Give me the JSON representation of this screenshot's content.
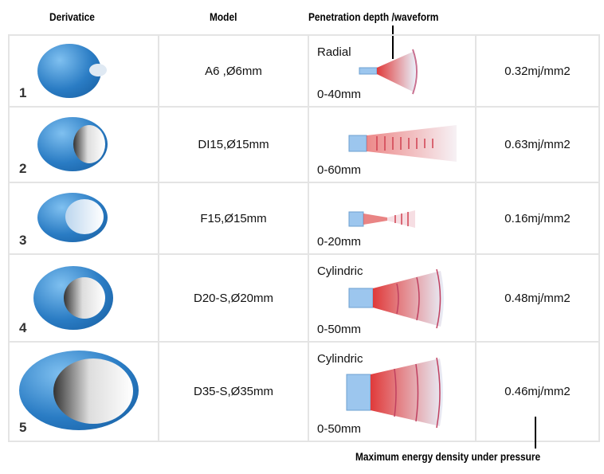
{
  "headers": {
    "derivative": "Derivatice",
    "model": "Model",
    "penetration": "Penetration depth /waveform"
  },
  "footer": "Maximum energy density under pressure",
  "rows": [
    {
      "num": "1",
      "model": "A6 ,Ø6mm",
      "type": "Radial",
      "depth": "0-40mm",
      "energy": "0.32mj/mm2"
    },
    {
      "num": "2",
      "model": "DI15,Ø15mm",
      "type": "",
      "depth": "0-60mm",
      "energy": "0.63mj/mm2"
    },
    {
      "num": "3",
      "model": "F15,Ø15mm",
      "type": "",
      "depth": "0-20mm",
      "energy": "0.16mj/mm2"
    },
    {
      "num": "4",
      "model": "D20-S,Ø20mm",
      "type": "Cylindric",
      "depth": "0-50mm",
      "energy": "0.48mj/mm2"
    },
    {
      "num": "5",
      "model": "D35-S,Ø35mm",
      "type": "Cylindric",
      "depth": "0-50mm",
      "energy": "0.46mj/mm2"
    }
  ]
}
